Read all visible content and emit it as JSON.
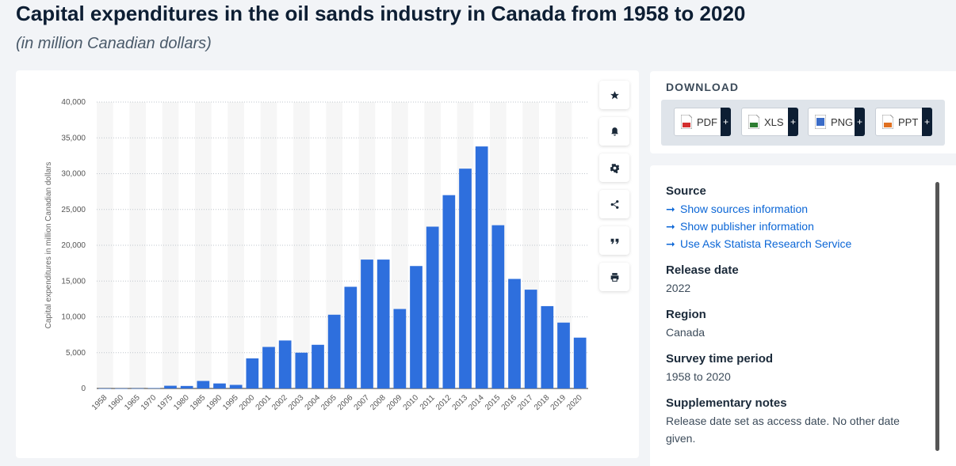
{
  "header": {
    "title": "Capital expenditures in the oil sands industry in Canada from 1958 to 2020",
    "subtitle": "(in million Canadian dollars)"
  },
  "chart_data": {
    "type": "bar",
    "ylabel": "Capital expenditures in million Canadian dollars",
    "xlabel": "",
    "ylim": [
      0,
      40000
    ],
    "yticks": [
      0,
      5000,
      10000,
      15000,
      20000,
      25000,
      30000,
      35000,
      40000
    ],
    "ytick_labels": [
      "0",
      "5,000",
      "10,000",
      "15,000",
      "20,000",
      "25,000",
      "30,000",
      "35,000",
      "40,000"
    ],
    "grid": true,
    "bar_color": "#2e6fdd",
    "categories": [
      "1958",
      "1960",
      "1965",
      "1970",
      "1975",
      "1980",
      "1985",
      "1990",
      "1995",
      "2000",
      "2001",
      "2002",
      "2003",
      "2004",
      "2005",
      "2006",
      "2007",
      "2008",
      "2009",
      "2010",
      "2011",
      "2012",
      "2013",
      "2014",
      "2015",
      "2016",
      "2017",
      "2018",
      "2019",
      "2020"
    ],
    "values": [
      5,
      10,
      20,
      50,
      380,
      350,
      1050,
      700,
      500,
      4200,
      5800,
      6700,
      5000,
      6100,
      10300,
      14200,
      18000,
      18000,
      11100,
      17100,
      22600,
      27000,
      30700,
      33800,
      22800,
      15300,
      13800,
      11500,
      9200,
      7100
    ]
  },
  "toolbar": {
    "buttons": [
      {
        "name": "favorite-button",
        "icon": "star-icon"
      },
      {
        "name": "notification-button",
        "icon": "bell-icon"
      },
      {
        "name": "settings-button",
        "icon": "gear-icon"
      },
      {
        "name": "share-button",
        "icon": "share-icon"
      },
      {
        "name": "cite-button",
        "icon": "quote-icon"
      },
      {
        "name": "print-button",
        "icon": "print-icon"
      }
    ]
  },
  "download": {
    "label": "DOWNLOAD",
    "buttons": [
      {
        "label": "PDF",
        "color": "#d32f2f"
      },
      {
        "label": "XLS",
        "color": "#2e7d32"
      },
      {
        "label": "PNG",
        "color": "#3b6cc7"
      },
      {
        "label": "PPT",
        "color": "#e07020"
      }
    ],
    "plus": "+"
  },
  "info": {
    "source_heading": "Source",
    "links": [
      "Show sources information",
      "Show publisher information",
      "Use Ask Statista Research Service"
    ],
    "link_arrow": "➞",
    "release_heading": "Release date",
    "release_value": "2022",
    "region_heading": "Region",
    "region_value": "Canada",
    "period_heading": "Survey time period",
    "period_value": "1958 to 2020",
    "notes_heading": "Supplementary notes",
    "notes_value": "Release date set as access date. No other date given."
  }
}
